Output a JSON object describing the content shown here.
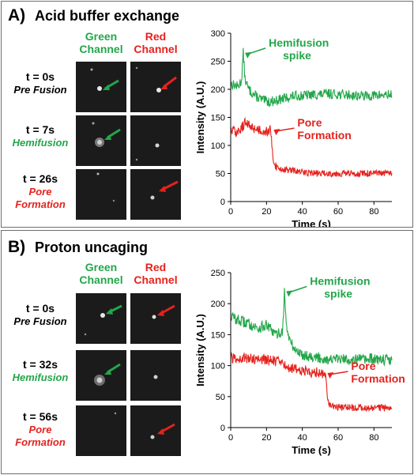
{
  "panels": [
    {
      "id": "A",
      "letter": "A)",
      "title": "Acid buffer exchange",
      "channels": [
        {
          "label": [
            "Green",
            "Channel"
          ],
          "color": "#23a64a"
        },
        {
          "label": [
            "Red",
            "Channel"
          ],
          "color": "#e5221d"
        }
      ],
      "rows": [
        {
          "time": "t = 0s",
          "state": [
            "Pre Fusion"
          ],
          "state_color": "#000000",
          "green_arrow": true,
          "red_arrow": true
        },
        {
          "time": "t = 7s",
          "state": [
            "Hemifusion"
          ],
          "state_color": "#23a64a",
          "green_arrow": true,
          "red_arrow": false
        },
        {
          "time": "t = 26s",
          "state": [
            "Pore",
            "Formation"
          ],
          "state_color": "#e5221d",
          "green_arrow": false,
          "red_arrow": true
        }
      ]
    },
    {
      "id": "B",
      "letter": "B)",
      "title": "Proton uncaging",
      "channels": [
        {
          "label": [
            "Green",
            "Channel"
          ],
          "color": "#23a64a"
        },
        {
          "label": [
            "Red",
            "Channel"
          ],
          "color": "#e5221d"
        }
      ],
      "rows": [
        {
          "time": "t = 0s",
          "state": [
            "Pre Fusion"
          ],
          "state_color": "#000000",
          "green_arrow": true,
          "red_arrow": true
        },
        {
          "time": "t = 32s",
          "state": [
            "Hemifusion"
          ],
          "state_color": "#23a64a",
          "green_arrow": true,
          "red_arrow": false
        },
        {
          "time": "t = 56s",
          "state": [
            "Pore",
            "Formation"
          ],
          "state_color": "#e5221d",
          "green_arrow": false,
          "red_arrow": true
        }
      ]
    }
  ],
  "chart_data": [
    {
      "type": "line",
      "panel": "A",
      "xlabel": "Time (s)",
      "ylabel": "Intensity (A.U.)",
      "xlim": [
        0,
        90
      ],
      "ylim": [
        0,
        300
      ],
      "xticks": [
        0,
        20,
        40,
        60,
        80
      ],
      "yticks": [
        0,
        50,
        100,
        150,
        200,
        250,
        300
      ],
      "series": [
        {
          "color": "#23a64a",
          "x": [
            0,
            4,
            6,
            7,
            8,
            10,
            14,
            18,
            22,
            28,
            35,
            45,
            55,
            65,
            75,
            85,
            90
          ],
          "y": [
            210,
            205,
            215,
            265,
            218,
            200,
            188,
            180,
            178,
            182,
            188,
            190,
            192,
            190,
            188,
            190,
            190
          ]
        },
        {
          "color": "#e5221d",
          "x": [
            0,
            4,
            8,
            12,
            16,
            20,
            22,
            23,
            24,
            26,
            30,
            35,
            40,
            50,
            60,
            70,
            80,
            90
          ],
          "y": [
            128,
            122,
            140,
            132,
            128,
            125,
            128,
            100,
            72,
            60,
            57,
            55,
            52,
            50,
            50,
            50,
            50,
            50
          ]
        }
      ],
      "annotations": [
        {
          "text": [
            "Hemifusion",
            "spike"
          ],
          "x": 8,
          "y": 265,
          "color": "#23a64a"
        },
        {
          "text": [
            "Pore",
            "Formation"
          ],
          "x": 24,
          "y": 128,
          "color": "#e5221d"
        }
      ]
    },
    {
      "type": "line",
      "panel": "B",
      "xlabel": "Time (s)",
      "ylabel": "Intensity (A.U.)",
      "xlim": [
        0,
        90
      ],
      "ylim": [
        0,
        250
      ],
      "xticks": [
        0,
        20,
        40,
        60,
        80
      ],
      "yticks": [
        0,
        50,
        100,
        150,
        200,
        250
      ],
      "series": [
        {
          "color": "#23a64a",
          "x": [
            0,
            5,
            10,
            15,
            20,
            25,
            29,
            30,
            31,
            33,
            36,
            40,
            45,
            50,
            55,
            60,
            70,
            80,
            90
          ],
          "y": [
            180,
            172,
            168,
            160,
            165,
            150,
            155,
            220,
            165,
            140,
            125,
            118,
            115,
            112,
            110,
            110,
            110,
            110,
            110
          ]
        },
        {
          "color": "#e5221d",
          "x": [
            0,
            10,
            20,
            25,
            30,
            35,
            40,
            45,
            50,
            53,
            54,
            56,
            60,
            70,
            80,
            90
          ],
          "y": [
            112,
            112,
            110,
            108,
            100,
            95,
            92,
            90,
            88,
            88,
            45,
            35,
            33,
            32,
            32,
            32
          ]
        }
      ],
      "annotations": [
        {
          "text": [
            "Hemifusion",
            "spike"
          ],
          "x": 31,
          "y": 220,
          "color": "#23a64a"
        },
        {
          "text": [
            "Pore",
            "Formation"
          ],
          "x": 54,
          "y": 88,
          "color": "#e5221d"
        }
      ]
    }
  ]
}
